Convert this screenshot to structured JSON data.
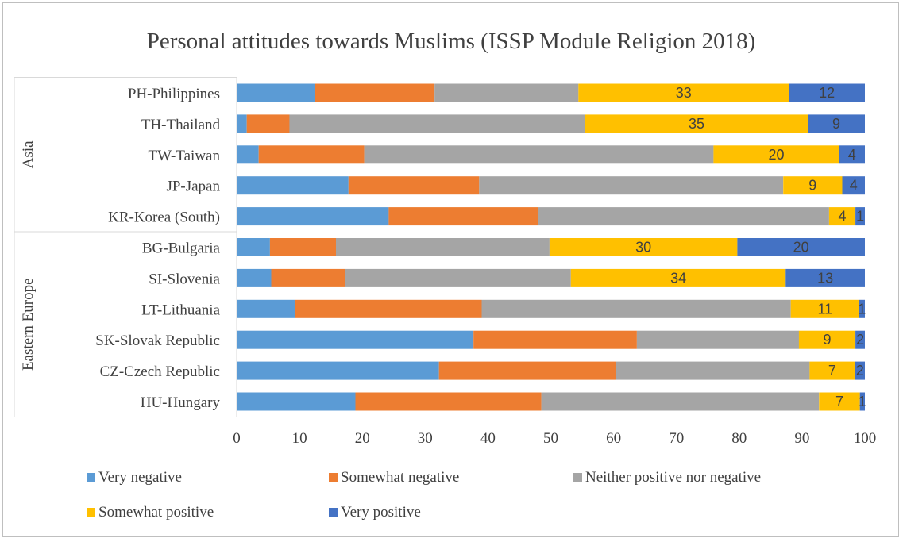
{
  "chart_data": {
    "type": "bar",
    "orientation": "horizontal",
    "stacked": true,
    "title": "Personal attitudes towards Muslims (ISSP Module Religion 2018)",
    "xlabel": "",
    "ylabel": "",
    "xlim": [
      0,
      100
    ],
    "x_ticks": [
      "0",
      "10",
      "20",
      "30",
      "40",
      "50",
      "60",
      "70",
      "80",
      "90",
      "100"
    ],
    "grid": false,
    "legend_position": "bottom",
    "groups": [
      {
        "name": "Asia",
        "categories": [
          "PH-Philippines",
          "TH-Thailand",
          "TW-Taiwan",
          "JP-Japan",
          "KR-Korea (South)"
        ]
      },
      {
        "name": "Eastern Europe",
        "categories": [
          "BG-Bulgaria",
          "SI-Slovenia",
          "LT-Lithuania",
          "SK-Slovak Republic",
          "CZ-Czech Republic",
          "HU-Hungary"
        ]
      }
    ],
    "categories": [
      "PH-Philippines",
      "TH-Thailand",
      "TW-Taiwan",
      "JP-Japan",
      "KR-Korea (South)",
      "BG-Bulgaria",
      "SI-Slovenia",
      "LT-Lithuania",
      "SK-Slovak Republic",
      "CZ-Czech Republic",
      "HU-Hungary"
    ],
    "series": [
      {
        "name": "Very negative",
        "color": "#5b9bd5",
        "values": [
          12.4,
          1.6,
          3.5,
          17.8,
          24.2,
          5.3,
          5.5,
          9.3,
          37.7,
          32.2,
          18.9
        ],
        "labels": [
          "",
          "",
          "",
          "",
          "",
          "",
          "",
          "",
          "",
          "",
          ""
        ]
      },
      {
        "name": "Somewhat negative",
        "color": "#ed7d31",
        "values": [
          19.1,
          6.8,
          16.8,
          20.8,
          23.8,
          10.5,
          11.8,
          29.7,
          26.0,
          28.1,
          29.6
        ],
        "labels": [
          "",
          "",
          "",
          "",
          "",
          "",
          "",
          "",
          "",
          "",
          ""
        ]
      },
      {
        "name": "Neither positive nor negative",
        "color": "#a5a5a5",
        "values": [
          22.9,
          47.1,
          55.6,
          48.4,
          46.3,
          34.0,
          35.9,
          49.2,
          25.8,
          30.9,
          44.2
        ],
        "labels": [
          "",
          "",
          "",
          "",
          "",
          "",
          "",
          "",
          "",
          "",
          ""
        ]
      },
      {
        "name": "Somewhat positive",
        "color": "#ffc000",
        "values": [
          33.5,
          35.4,
          20.0,
          9.4,
          4.2,
          29.9,
          34.2,
          10.9,
          9.0,
          7.2,
          6.5
        ],
        "labels": [
          "33",
          "35",
          "20",
          "9",
          "4",
          "30",
          "34",
          "11",
          "9",
          "7",
          "7"
        ]
      },
      {
        "name": "Very positive",
        "color": "#4472c4",
        "values": [
          12.1,
          9.1,
          4.1,
          3.6,
          1.5,
          20.3,
          12.6,
          0.9,
          1.5,
          1.6,
          0.8
        ],
        "labels": [
          "12",
          "9",
          "4",
          "4",
          "1",
          "20",
          "13",
          "1",
          "2",
          "2",
          "1"
        ]
      }
    ]
  }
}
